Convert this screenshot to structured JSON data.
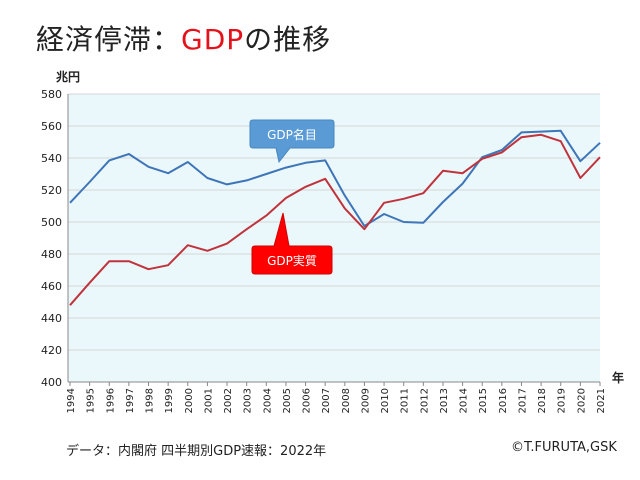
{
  "header": {
    "title_main": "経済停滞：",
    "title_highlight": "GDP",
    "title_rest": "の推移"
  },
  "footer": {
    "source": "データ：内閣府 四半期別GDP速報：2022年",
    "copyright": "©T.FURUTA,GSK"
  },
  "colors": {
    "nominal": "#3e75b8",
    "real": "#c0333c",
    "plot_bg": "#ebf8fb",
    "nominal_callout": "#5b9bd5",
    "real_callout": "#ff0000"
  },
  "chart_data": {
    "type": "line",
    "ylabel": "兆円",
    "xlabel": "年",
    "ylim": [
      400,
      580
    ],
    "y_ticks": [
      400,
      420,
      440,
      460,
      480,
      500,
      520,
      540,
      560,
      580
    ],
    "categories": [
      "1994",
      "1995",
      "1996",
      "1997",
      "1998",
      "1999",
      "2000",
      "2001",
      "2002",
      "2003",
      "2004",
      "2005",
      "2006",
      "2007",
      "2008",
      "2009",
      "2010",
      "2011",
      "2012",
      "2013",
      "2014",
      "2015",
      "2016",
      "2017",
      "2018",
      "2019",
      "2020",
      "2021"
    ],
    "series": [
      {
        "name": "GDP名目",
        "values": [
          512,
          525,
          538.5,
          542.5,
          534.5,
          530.5,
          537.5,
          527.5,
          523.5,
          526,
          530,
          534,
          537,
          538.5,
          516.5,
          497.5,
          505,
          500,
          499.5,
          512.5,
          524,
          540.5,
          545,
          556,
          556.5,
          557,
          538,
          549.5
        ]
      },
      {
        "name": "GDP実質",
        "values": [
          448,
          462,
          475.5,
          475.5,
          470.5,
          473,
          485.5,
          482,
          486.5,
          495.5,
          504,
          515,
          522,
          527,
          508.5,
          495.5,
          512,
          514.5,
          518,
          532,
          530.5,
          539.5,
          543.5,
          553,
          554.5,
          550.5,
          527.5,
          540.5
        ]
      }
    ]
  }
}
